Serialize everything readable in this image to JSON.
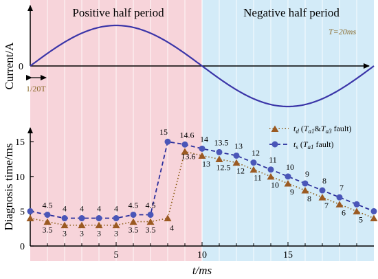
{
  "top_panel": {
    "positive_label": "Positive half period",
    "negative_label": "Negative half period",
    "period_note": "T=20ms",
    "ylabel": "Current/A",
    "zero_tick": "0",
    "interval_label": "1/20T"
  },
  "bottom_panel": {
    "ylabel": "Diagnosis time/ms",
    "xlabel": "t/ms"
  },
  "colors": {
    "positive_bg": "#f7d4da",
    "negative_bg": "#d3ebf8",
    "sine": "#3b35a8",
    "td_series": "#8a5a12",
    "td_marker": "#9b5a22",
    "ts_series": "#2a2e9c",
    "ts_marker": "#4a56b8"
  },
  "chart_data": [
    {
      "type": "line",
      "name": "current waveform",
      "xlim": [
        0,
        20
      ],
      "ylabel": "Current/A",
      "period_ms": 20
    },
    {
      "type": "line",
      "xlabel": "t/ms",
      "ylabel": "Diagnosis time/ms",
      "xlim": [
        0,
        20
      ],
      "ylim": [
        0,
        17
      ],
      "x_ticks": [
        "5",
        "10",
        "15"
      ],
      "y_ticks": [
        "0",
        "5",
        "10",
        "15"
      ],
      "grid": "vertical lines every 1 ms",
      "legend_position": "top-right",
      "series": [
        {
          "name": "t_s (T_a1 fault)",
          "legend_main": "t",
          "legend_sub": "s",
          "legend_paren_open": " (",
          "legend_T": "T",
          "legend_T_sub": "a1",
          "legend_tail": " fault)",
          "style": "dashed, circle markers",
          "x": [
            0,
            1,
            2,
            3,
            4,
            5,
            6,
            7,
            8,
            9,
            10,
            11,
            12,
            13,
            14,
            15,
            16,
            17,
            18,
            19,
            20
          ],
          "values": [
            5,
            4.5,
            4,
            4,
            4,
            4,
            4.5,
            4.5,
            15,
            14.6,
            14,
            13.5,
            13,
            12,
            11,
            10,
            9,
            8,
            7,
            6,
            5
          ],
          "labels": [
            "4.5",
            "4",
            "4",
            "4",
            "4",
            "4.5",
            "4.5",
            "15",
            "14.6",
            "14",
            "13.5",
            "13",
            "12",
            "11",
            "10",
            "9",
            "8",
            "7"
          ]
        },
        {
          "name": "t_d (T_a1&T_a3 fault)",
          "legend_main": "t",
          "legend_sub": "d",
          "legend_paren_open": " (",
          "legend_T": "T",
          "legend_T_sub": "a1",
          "legend_amp": "&",
          "legend_T2": "T",
          "legend_T2_sub": "a3",
          "legend_tail": " fault)",
          "style": "dotted, triangle markers",
          "x": [
            0,
            1,
            2,
            3,
            4,
            5,
            6,
            7,
            8,
            9,
            10,
            11,
            12,
            13,
            14,
            15,
            16,
            17,
            18,
            19,
            20
          ],
          "values": [
            4,
            3.5,
            3,
            3,
            3,
            3,
            3.5,
            3.5,
            4,
            13.6,
            13,
            12.5,
            12,
            11,
            10,
            9,
            8,
            7,
            6,
            5,
            4
          ],
          "labels": [
            "3.5",
            "3",
            "3",
            "3",
            "3",
            "3.5",
            "3.5",
            "4",
            "13.6",
            "13",
            "12.5",
            "12",
            "11",
            "10",
            "9",
            "8",
            "7",
            "6",
            "5"
          ]
        }
      ]
    }
  ]
}
